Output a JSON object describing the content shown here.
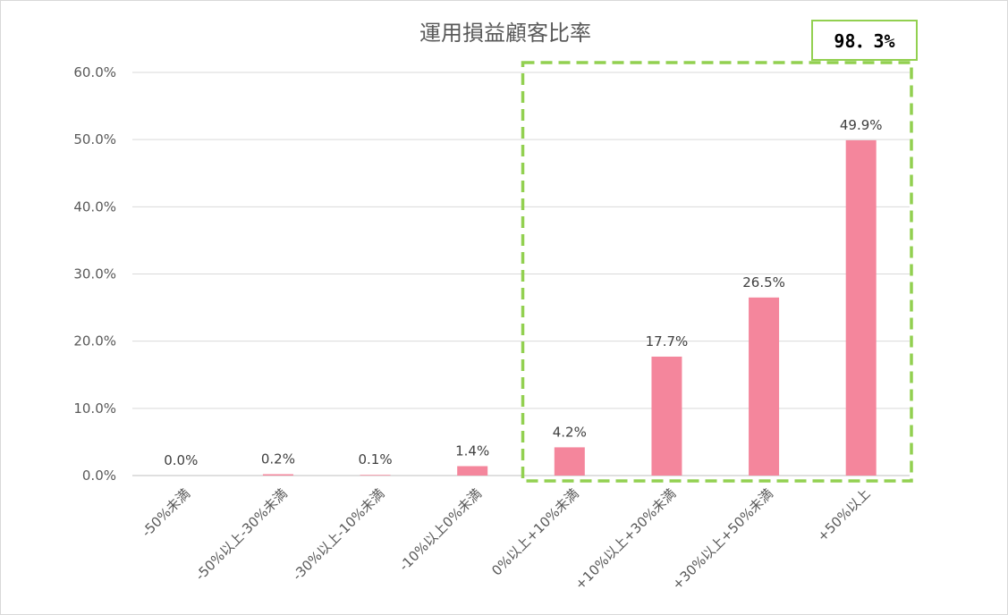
{
  "chart_data": {
    "type": "bar",
    "title": "運用損益顧客比率",
    "categories": [
      "-50%未満",
      "-50%以上-30%未満",
      "-30%以上-10%未満",
      "-10%以上0%未満",
      "0%以上+10%未満",
      "+10%以上+30%未満",
      "+30%以上+50%未満",
      "+50%以上"
    ],
    "values": [
      0.0,
      0.2,
      0.1,
      1.4,
      4.2,
      17.7,
      26.5,
      49.9
    ],
    "data_labels": [
      "0.0%",
      "0.2%",
      "0.1%",
      "1.4%",
      "4.2%",
      "17.7%",
      "26.5%",
      "49.9%"
    ],
    "ylim": [
      0,
      60
    ],
    "yticks": [
      "0.0%",
      "10.0%",
      "20.0%",
      "30.0%",
      "40.0%",
      "50.0%",
      "60.0%"
    ],
    "grid": true,
    "bar_color": "#f4869c",
    "highlight": {
      "categories_from": "0%以上+10%未満",
      "categories_to": "+50%以上",
      "label": "98．3%",
      "color": "#92d050"
    }
  }
}
